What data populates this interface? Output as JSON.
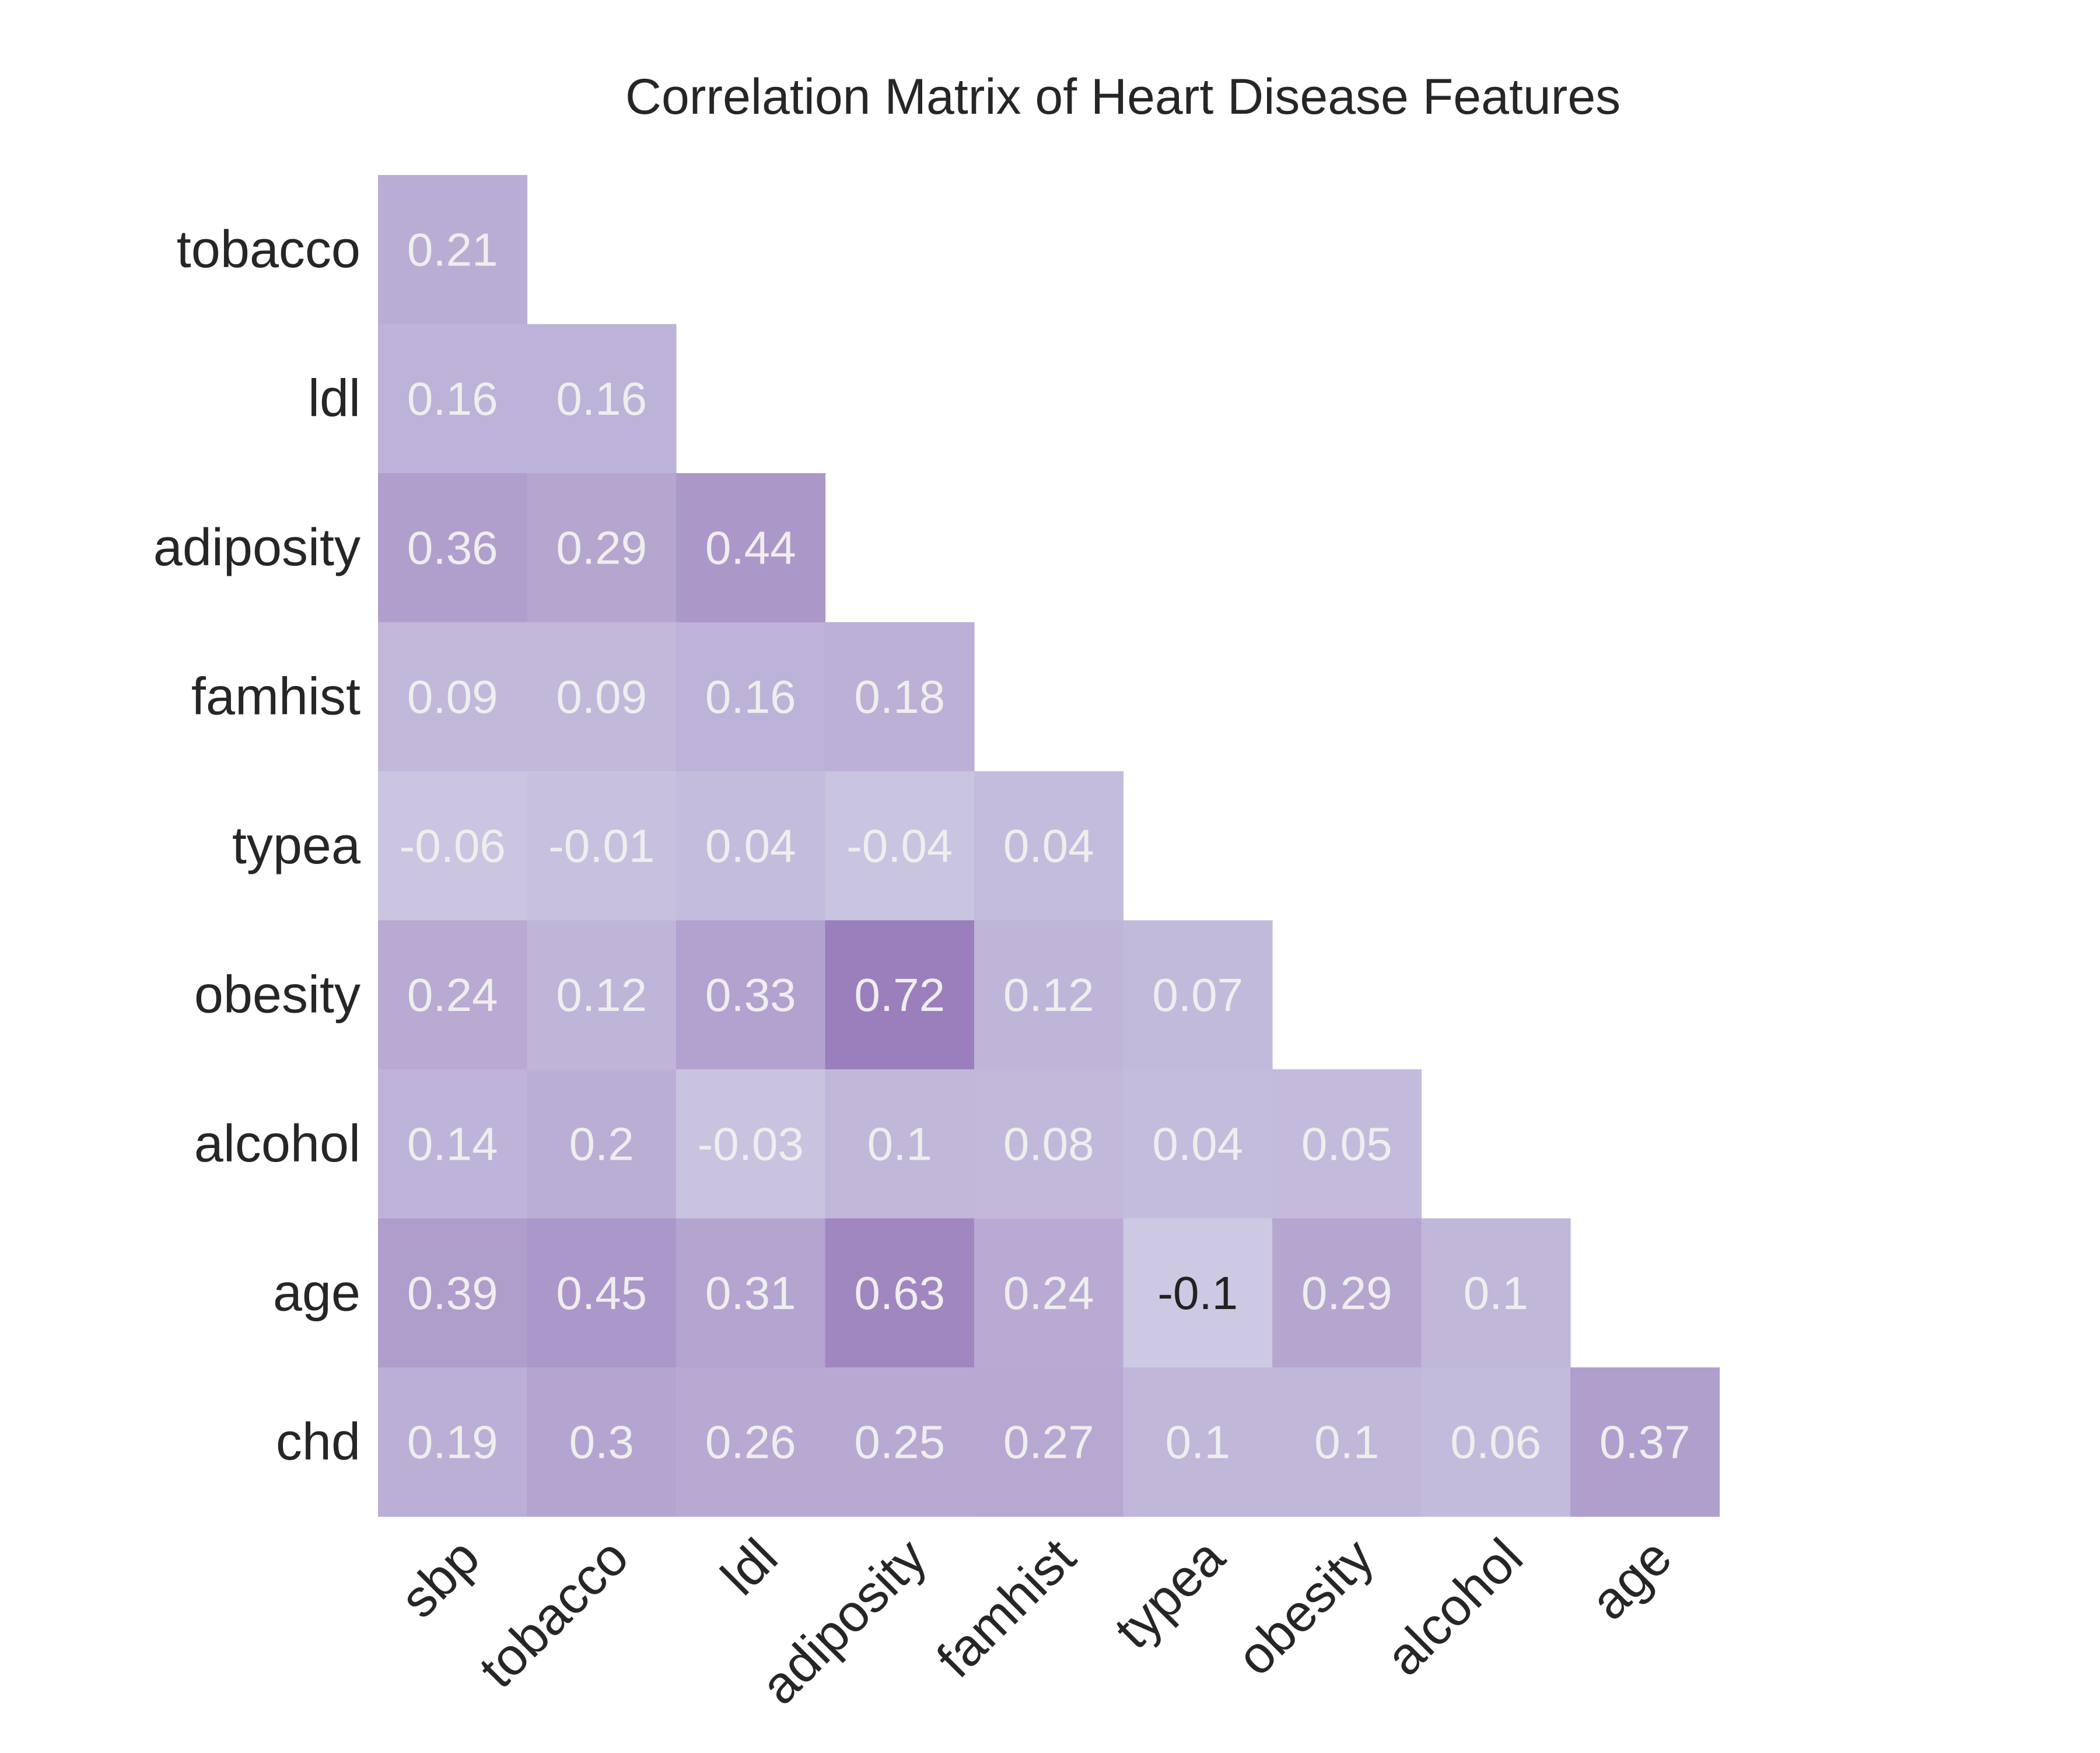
{
  "chart_data": {
    "type": "heatmap",
    "title": "Correlation Matrix of Heart Disease Features",
    "xlabel": "",
    "ylabel": "",
    "x_categories": [
      "sbp",
      "tobacco",
      "ldl",
      "adiposity",
      "famhist",
      "typea",
      "obesity",
      "alcohol",
      "age"
    ],
    "y_categories": [
      "tobacco",
      "ldl",
      "adiposity",
      "famhist",
      "typea",
      "obesity",
      "alcohol",
      "age",
      "chd"
    ],
    "mask": "lower-triangle",
    "color_map": "light lavender (low) to purple (high)",
    "color_low": "#cdc9e3",
    "color_high": "#9a7fbc",
    "value_range": [
      -0.1,
      0.72
    ],
    "label_colors": {
      "light": "#eeeeee",
      "dark": "#222222"
    },
    "grid": false,
    "rows": [
      [
        0.21
      ],
      [
        0.16,
        0.16
      ],
      [
        0.36,
        0.29,
        0.44
      ],
      [
        0.09,
        0.09,
        0.16,
        0.18
      ],
      [
        -0.06,
        -0.01,
        0.04,
        -0.04,
        0.04
      ],
      [
        0.24,
        0.12,
        0.33,
        0.72,
        0.12,
        0.07
      ],
      [
        0.14,
        0.2,
        -0.03,
        0.1,
        0.08,
        0.04,
        0.05
      ],
      [
        0.39,
        0.45,
        0.31,
        0.63,
        0.24,
        -0.1,
        0.29,
        0.1
      ],
      [
        0.19,
        0.3,
        0.26,
        0.25,
        0.27,
        0.1,
        0.1,
        0.06,
        0.37
      ]
    ],
    "cell_labels": [
      [
        "0.21"
      ],
      [
        "0.16",
        "0.16"
      ],
      [
        "0.36",
        "0.29",
        "0.44"
      ],
      [
        "0.09",
        "0.09",
        "0.16",
        "0.18"
      ],
      [
        "-0.06",
        "-0.01",
        "0.04",
        "-0.04",
        "0.04"
      ],
      [
        "0.24",
        "0.12",
        "0.33",
        "0.72",
        "0.12",
        "0.07"
      ],
      [
        "0.14",
        "0.2",
        "-0.03",
        "0.1",
        "0.08",
        "0.04",
        "0.05"
      ],
      [
        "0.39",
        "0.45",
        "0.31",
        "0.63",
        "0.24",
        "-0.1",
        "0.29",
        "0.1"
      ],
      [
        "0.19",
        "0.3",
        "0.26",
        "0.25",
        "0.27",
        "0.1",
        "0.1",
        "0.06",
        "0.37"
      ]
    ]
  }
}
